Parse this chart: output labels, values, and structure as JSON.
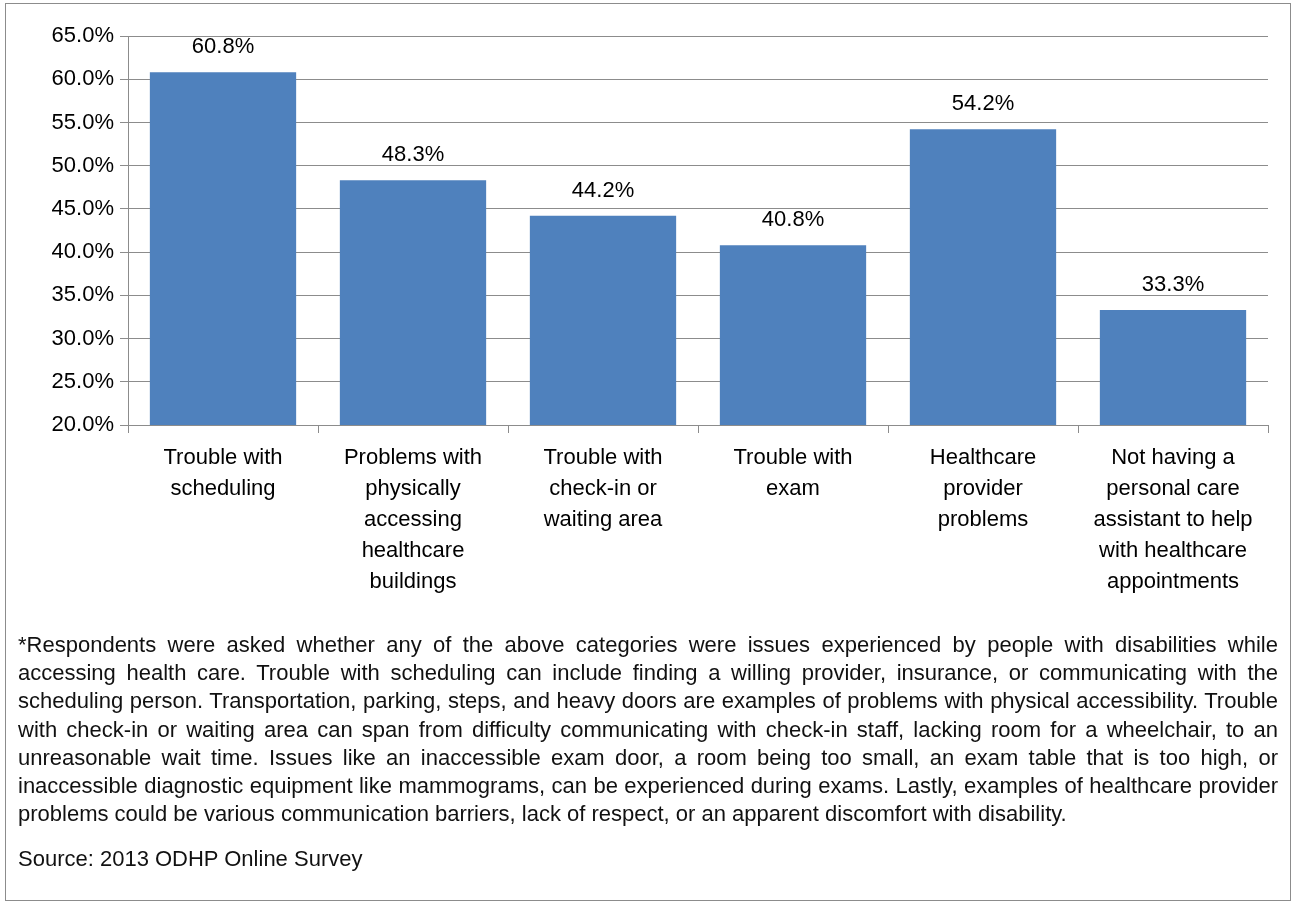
{
  "chart_data": {
    "type": "bar",
    "categories": [
      "Trouble with scheduling",
      "Problems with physically accessing healthcare buildings",
      "Trouble with check-in or waiting area",
      "Trouble with exam",
      "Healthcare provider problems",
      "Not having a personal care assistant to help with healthcare appointments"
    ],
    "values": [
      60.8,
      48.3,
      44.2,
      40.8,
      54.2,
      33.3
    ],
    "value_labels": [
      "60.8%",
      "48.3%",
      "44.2%",
      "40.8%",
      "54.2%",
      "33.3%"
    ],
    "color": "#4f81bd",
    "ylim": [
      20,
      65
    ],
    "yticks": [
      {
        "value": 20,
        "label": "20.0%"
      },
      {
        "value": 25,
        "label": "25.0%"
      },
      {
        "value": 30,
        "label": "30.0%"
      },
      {
        "value": 35,
        "label": "35.0%"
      },
      {
        "value": 40,
        "label": "40.0%"
      },
      {
        "value": 45,
        "label": "45.0%"
      },
      {
        "value": 50,
        "label": "50.0%"
      },
      {
        "value": 55,
        "label": "55.0%"
      },
      {
        "value": 60,
        "label": "60.0%"
      },
      {
        "value": 65,
        "label": "65.0%"
      }
    ],
    "grid": "y",
    "annotations": [
      "*Respondents were asked whether any of the above categories were issues experienced by people with disabilities while accessing health care. Trouble with scheduling can include finding a willing provider, insurance, or communicating with the scheduling person. Transportation, parking, steps, and heavy doors are examples of problems with physical accessibility. Trouble with check-in or waiting area can span from difficulty communicating with check-in staff, lacking room for a wheelchair, to an unreasonable wait time. Issues like an inaccessible exam door, a room being too small, an exam table that is too high, or inaccessible diagnostic equipment like mammograms, can be experienced during exams. Lastly, examples of healthcare provider problems could be various communication barriers, lack of respect, or an apparent discomfort with disability.",
      "Source: 2013 ODHP Online Survey"
    ]
  }
}
